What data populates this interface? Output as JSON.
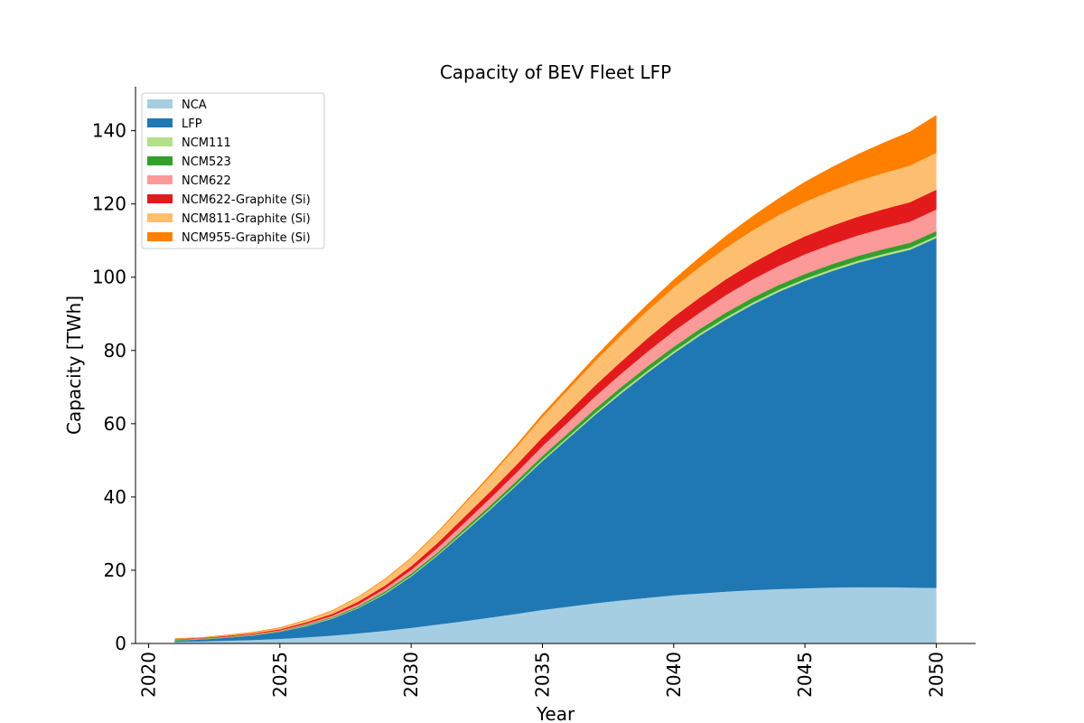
{
  "chart_data": {
    "type": "area",
    "stacked": true,
    "title": "Capacity of BEV Fleet LFP",
    "xlabel": "Year",
    "ylabel": "Capacity [TWh]",
    "xlim": [
      2019.5,
      2051.5
    ],
    "ylim": [
      0,
      152
    ],
    "xticks": [
      2020,
      2025,
      2030,
      2035,
      2040,
      2045,
      2050
    ],
    "yticks": [
      0,
      20,
      40,
      60,
      80,
      100,
      120,
      140
    ],
    "grid": false,
    "legend_position": "top-left",
    "x": [
      2021,
      2022,
      2023,
      2024,
      2025,
      2026,
      2027,
      2028,
      2029,
      2030,
      2031,
      2032,
      2033,
      2034,
      2035,
      2036,
      2037,
      2038,
      2039,
      2040,
      2041,
      2042,
      2043,
      2044,
      2045,
      2046,
      2047,
      2048,
      2049,
      2050
    ],
    "series": [
      {
        "name": "NCA",
        "color": "#a6cee3",
        "values": [
          0.5,
          0.6,
          0.8,
          1.0,
          1.3,
          1.7,
          2.2,
          2.8,
          3.5,
          4.3,
          5.2,
          6.1,
          7.1,
          8.1,
          9.2,
          10.1,
          11.0,
          11.8,
          12.5,
          13.2,
          13.7,
          14.2,
          14.6,
          14.9,
          15.1,
          15.3,
          15.4,
          15.4,
          15.3,
          15.2
        ]
      },
      {
        "name": "LFP",
        "color": "#1f78b4",
        "values": [
          0.3,
          0.5,
          0.8,
          1.2,
          1.9,
          3.0,
          4.6,
          6.9,
          10.0,
          14.0,
          18.8,
          24.1,
          29.4,
          35.0,
          40.6,
          46.0,
          51.4,
          56.5,
          61.4,
          66.0,
          70.4,
          74.3,
          77.9,
          81.1,
          83.9,
          86.3,
          88.5,
          90.4,
          92.2,
          95.5
        ]
      },
      {
        "name": "NCM111",
        "color": "#b2df8a",
        "values": [
          0.1,
          0.1,
          0.1,
          0.1,
          0.1,
          0.2,
          0.2,
          0.2,
          0.3,
          0.3,
          0.3,
          0.4,
          0.4,
          0.4,
          0.5,
          0.5,
          0.5,
          0.6,
          0.6,
          0.6,
          0.6,
          0.6,
          0.6,
          0.6,
          0.6,
          0.6,
          0.6,
          0.6,
          0.6,
          0.6
        ]
      },
      {
        "name": "NCM523",
        "color": "#33a02c",
        "values": [
          0.1,
          0.1,
          0.1,
          0.1,
          0.1,
          0.2,
          0.2,
          0.3,
          0.4,
          0.5,
          0.5,
          0.6,
          0.7,
          0.8,
          0.9,
          1.0,
          1.1,
          1.1,
          1.2,
          1.2,
          1.2,
          1.3,
          1.3,
          1.3,
          1.3,
          1.3,
          1.3,
          1.3,
          1.3,
          1.3
        ]
      },
      {
        "name": "NCM622",
        "color": "#fb9a99",
        "values": [
          0.1,
          0.1,
          0.1,
          0.2,
          0.2,
          0.3,
          0.4,
          0.6,
          0.8,
          1.0,
          1.3,
          1.6,
          2.0,
          2.3,
          2.7,
          3.0,
          3.4,
          3.7,
          4.0,
          4.3,
          4.5,
          4.8,
          5.0,
          5.2,
          5.4,
          5.5,
          5.6,
          5.7,
          5.8,
          5.9
        ]
      },
      {
        "name": "NCM622-Graphite (Si)",
        "color": "#e31a1c",
        "values": [
          0.1,
          0.1,
          0.2,
          0.2,
          0.3,
          0.4,
          0.5,
          0.7,
          0.8,
          1.0,
          1.3,
          1.6,
          1.8,
          2.1,
          2.4,
          2.7,
          3.0,
          3.3,
          3.6,
          3.9,
          4.1,
          4.3,
          4.5,
          4.7,
          4.9,
          5.0,
          5.1,
          5.2,
          5.3,
          5.4
        ]
      },
      {
        "name": "NCM811-Graphite (Si)",
        "color": "#fdbf6f",
        "values": [
          0.1,
          0.1,
          0.2,
          0.3,
          0.4,
          0.6,
          0.9,
          1.3,
          1.7,
          2.2,
          2.8,
          3.5,
          4.2,
          4.9,
          5.6,
          6.2,
          6.7,
          7.2,
          7.6,
          8.0,
          8.4,
          8.6,
          8.9,
          9.2,
          9.4,
          9.6,
          9.8,
          9.9,
          10.0,
          10.1
        ]
      },
      {
        "name": "NCM955-Graphite (Si)",
        "color": "#ff7f00",
        "values": [
          0.0,
          0.0,
          0.0,
          0.0,
          0.0,
          0.0,
          0.0,
          0.0,
          0.1,
          0.1,
          0.2,
          0.3,
          0.4,
          0.5,
          0.7,
          0.9,
          1.1,
          1.4,
          1.7,
          2.1,
          2.6,
          3.2,
          3.8,
          4.5,
          5.4,
          6.3,
          7.2,
          8.2,
          9.2,
          10.2
        ]
      }
    ]
  }
}
